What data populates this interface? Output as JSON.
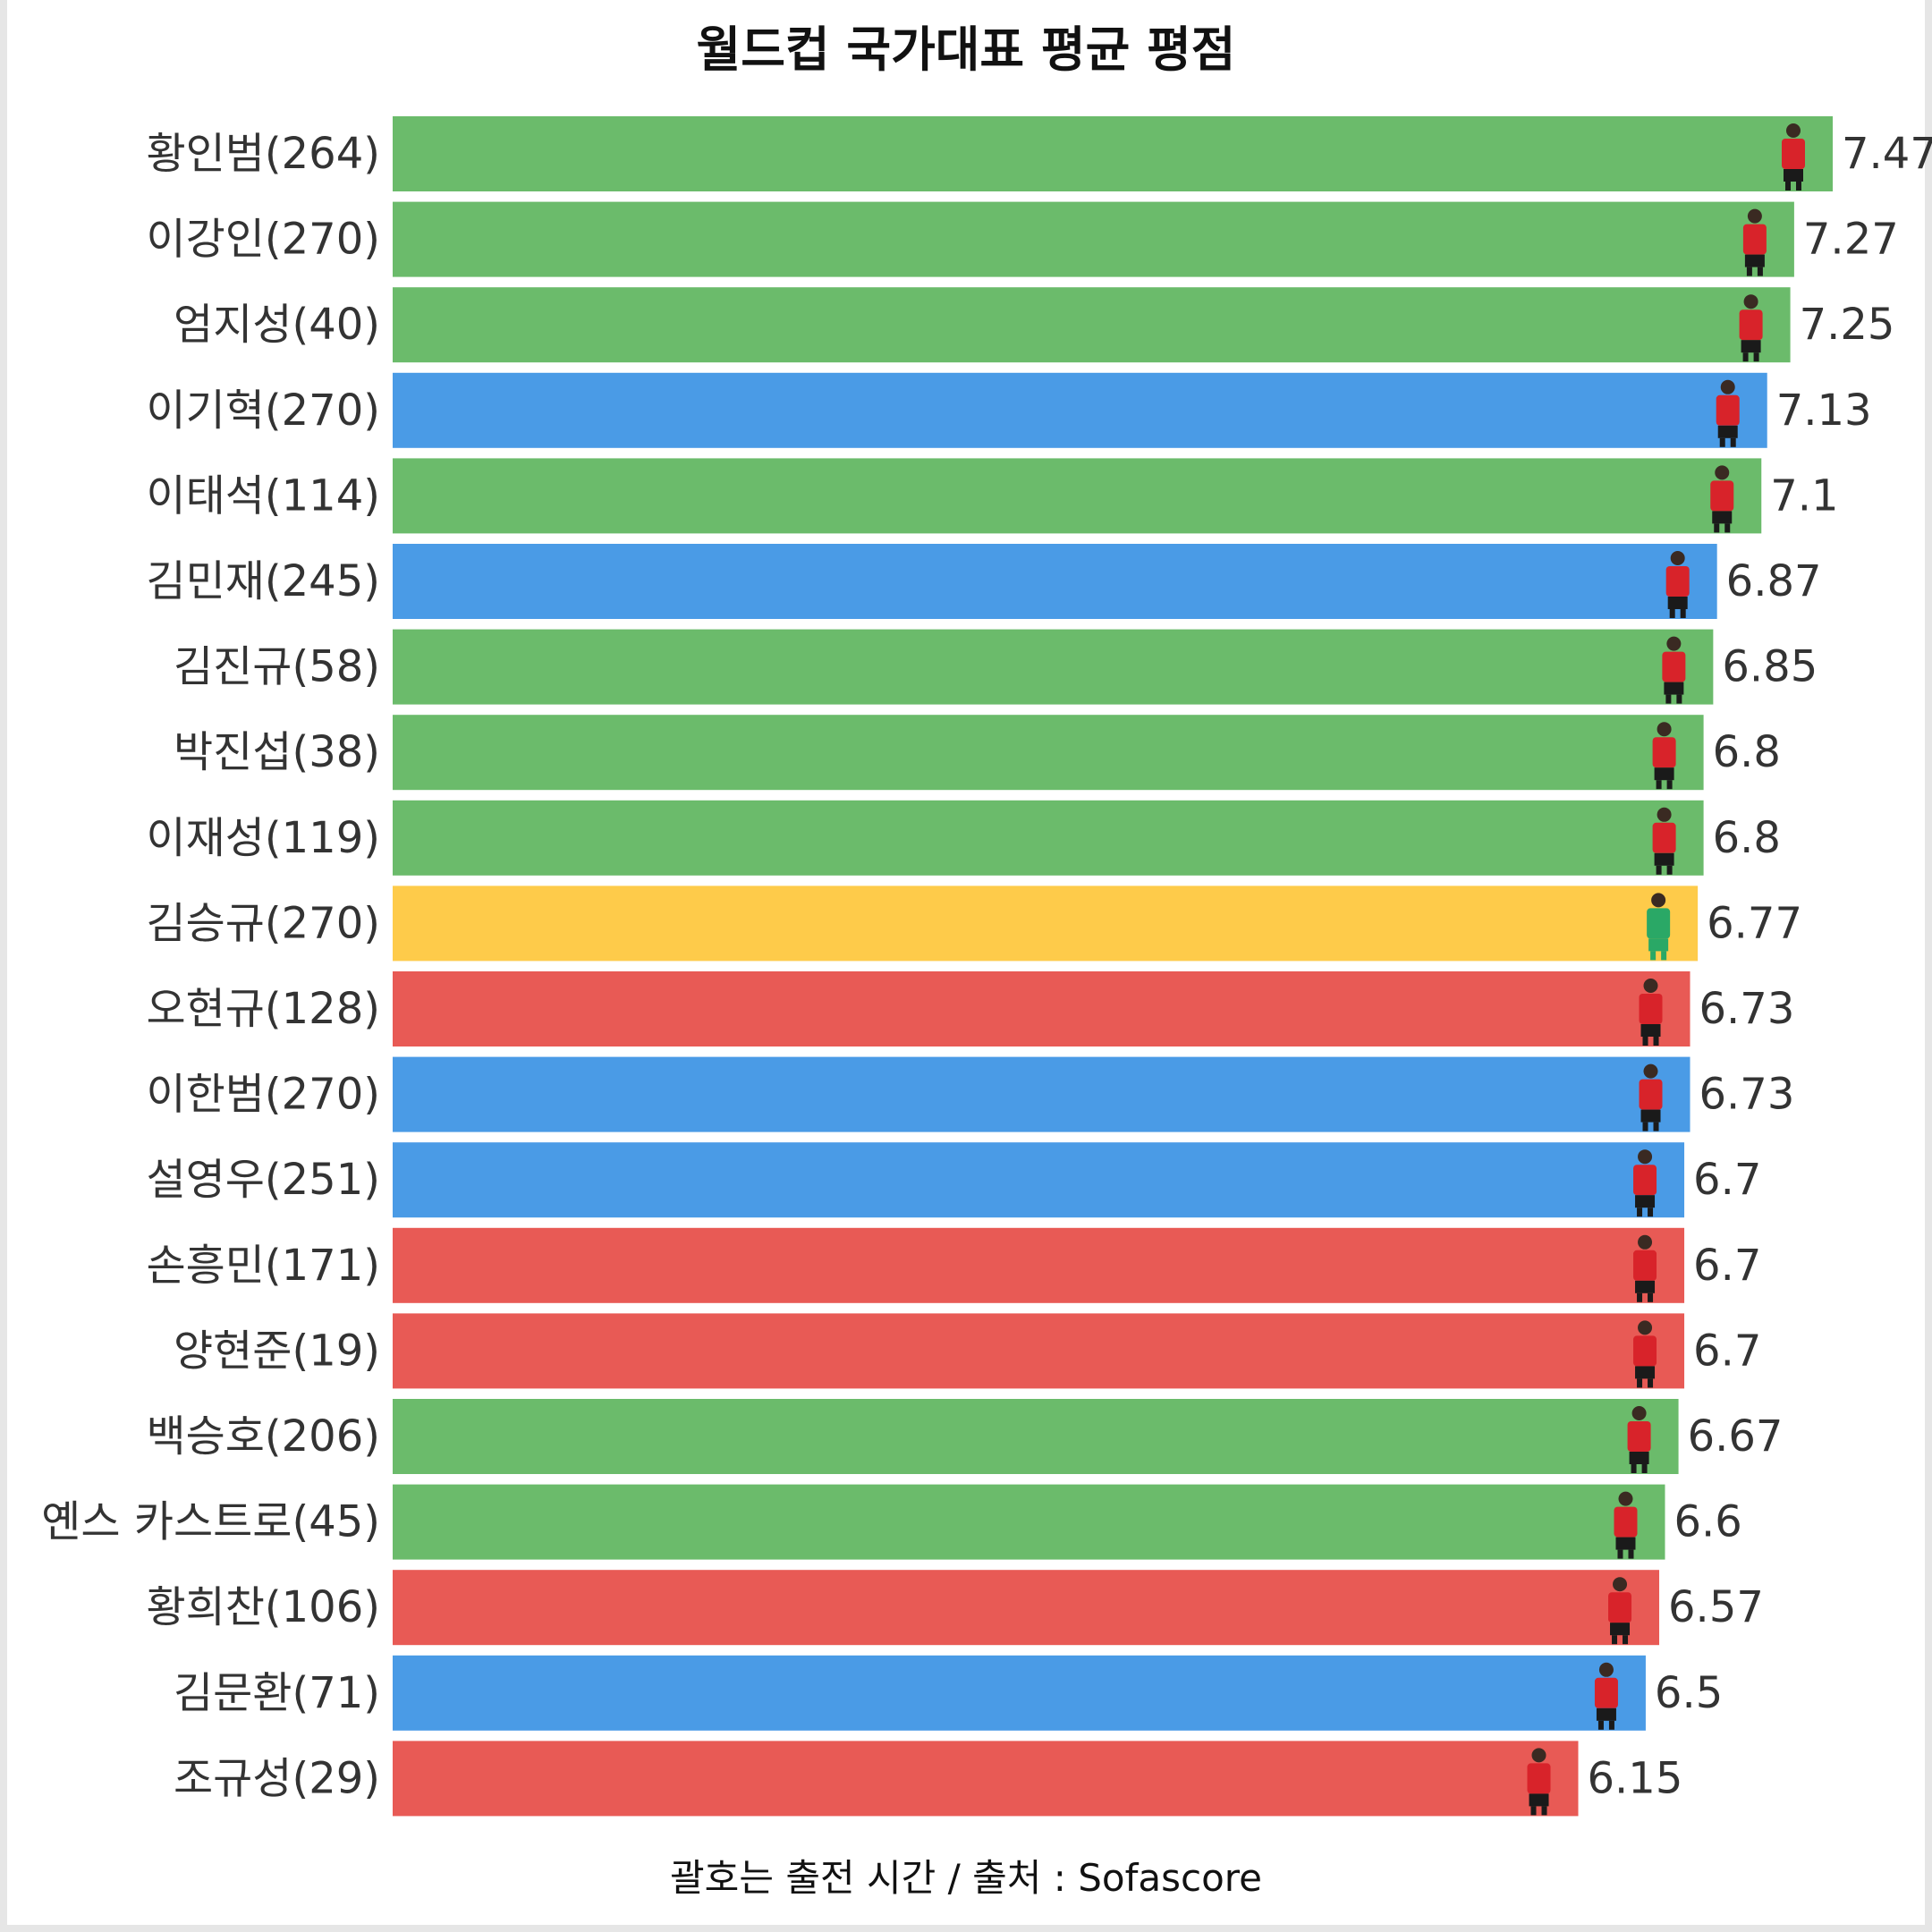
{
  "chart_data": {
    "type": "bar",
    "orientation": "horizontal",
    "title": "월드컵 국가대표 평균 평점",
    "footer": "괄호는 출전 시간 / 출처 : Sofascore",
    "grid": false,
    "legend": "none",
    "colors": {
      "green": "#6bbb6b",
      "blue": "#4a9be6",
      "yellow": "#fecb4a",
      "red": "#e85a55"
    },
    "categories": [
      "황인범(264)",
      "이강인(270)",
      "엄지성(40)",
      "이기혁(270)",
      "이태석(114)",
      "김민재(245)",
      "김진규(58)",
      "박진섭(38)",
      "이재성(119)",
      "김승규(270)",
      "오현규(128)",
      "이한범(270)",
      "설영우(251)",
      "손흥민(171)",
      "양현준(19)",
      "백승호(206)",
      "옌스 카스트로(45)",
      "황희찬(106)",
      "김문환(71)",
      "조규성(29)"
    ],
    "values": [
      7.47,
      7.27,
      7.25,
      7.13,
      7.1,
      6.87,
      6.85,
      6.8,
      6.8,
      6.77,
      6.73,
      6.73,
      6.7,
      6.7,
      6.7,
      6.67,
      6.6,
      6.57,
      6.5,
      6.15
    ],
    "value_labels": [
      "7.47",
      "7.27",
      "7.25",
      "7.13",
      "7.1",
      "6.87",
      "6.85",
      "6.8",
      "6.8",
      "6.77",
      "6.73",
      "6.73",
      "6.7",
      "6.7",
      "6.7",
      "6.67",
      "6.6",
      "6.57",
      "6.5",
      "6.15"
    ],
    "bar_colors": [
      "green",
      "green",
      "green",
      "blue",
      "green",
      "blue",
      "green",
      "green",
      "green",
      "yellow",
      "red",
      "blue",
      "blue",
      "red",
      "red",
      "green",
      "green",
      "red",
      "blue",
      "red"
    ],
    "player_icon": "player-photo-icon"
  }
}
